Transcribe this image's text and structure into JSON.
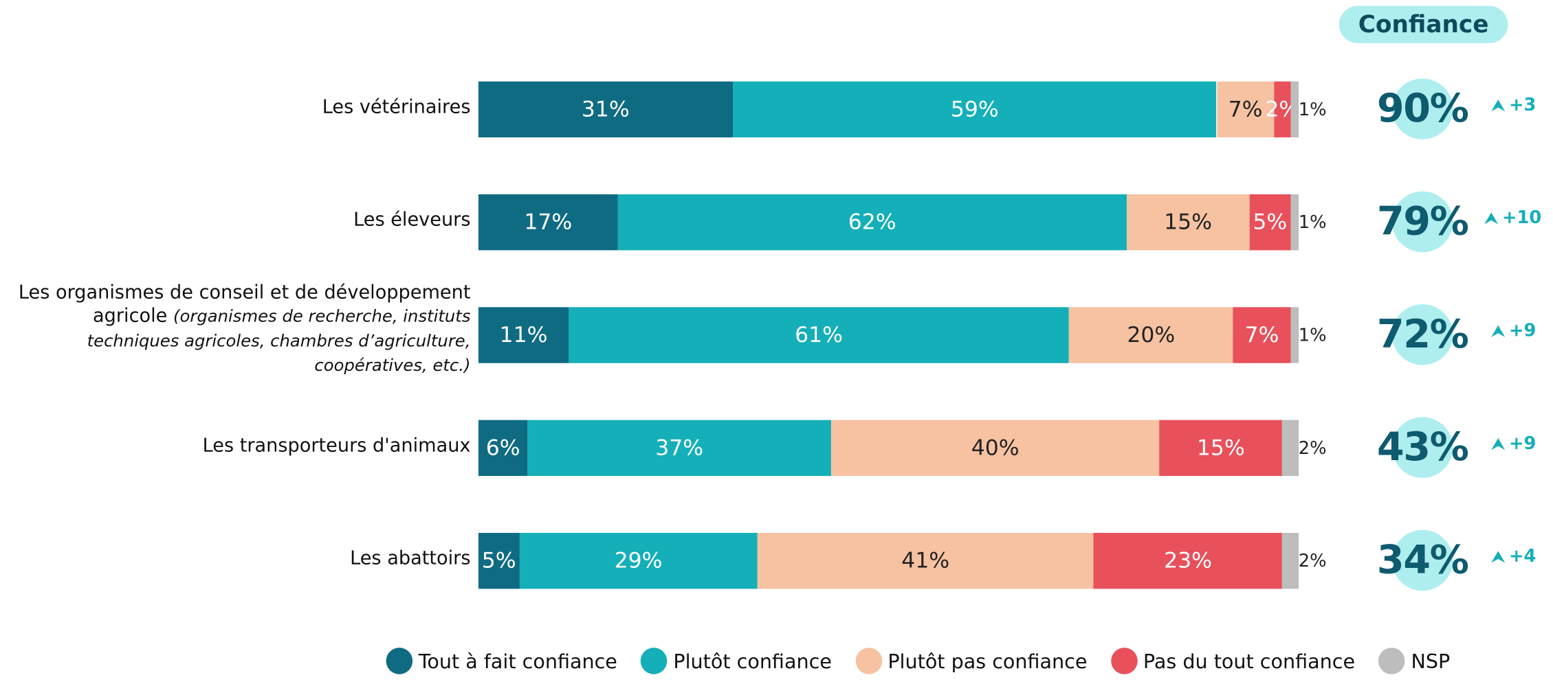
{
  "chart_data": {
    "type": "bar",
    "orientation": "horizontal",
    "stacked": true,
    "categories": [
      "Les vétérinaires",
      "Les éleveurs",
      "Les organismes de conseil et de développement agricole",
      "Les transporteurs d'animaux",
      "Les abattoirs"
    ],
    "category_details": [
      null,
      null,
      "(organismes de recherche, instituts techniques agricoles, chambres d’agriculture, coopératives, etc.)",
      null,
      null
    ],
    "xlim": [
      0,
      100
    ],
    "series": [
      {
        "name": "Tout à fait confiance",
        "color": "#0f6b82",
        "values": [
          31,
          17,
          11,
          6,
          5
        ],
        "value_labels": [
          "31%",
          "17%",
          "11%",
          "6%",
          "5%"
        ]
      },
      {
        "name": "Plutôt confiance",
        "color": "#14afb8",
        "values": [
          59,
          62,
          61,
          37,
          29
        ],
        "value_labels": [
          "59%",
          "62%",
          "61%",
          "37%",
          "29%"
        ]
      },
      {
        "name": "Plutôt pas confiance",
        "color": "#f7c2a2",
        "values": [
          7,
          15,
          20,
          40,
          41
        ],
        "value_labels": [
          "7%",
          "15%",
          "20%",
          "40%",
          "41%"
        ]
      },
      {
        "name": "Pas du tout confiance",
        "color": "#e8505b",
        "values": [
          2,
          5,
          7,
          15,
          23
        ],
        "value_labels": [
          "2%",
          "5%",
          "7%",
          "15%",
          "23%"
        ]
      },
      {
        "name": "NSP",
        "color": "#bdbdbd",
        "values": [
          1,
          1,
          1,
          2,
          2
        ],
        "value_labels": [
          "1%",
          "1%",
          "1%",
          "2%",
          "2%"
        ]
      }
    ],
    "confidence": {
      "title": "Confiance",
      "values": [
        90,
        79,
        72,
        43,
        34
      ],
      "value_labels": [
        "90%",
        "79%",
        "72%",
        "43%",
        "34%"
      ],
      "changes": [
        3,
        10,
        9,
        9,
        4
      ],
      "change_labels": [
        "+3",
        "+10",
        "+9",
        "+9",
        "+4"
      ]
    }
  }
}
